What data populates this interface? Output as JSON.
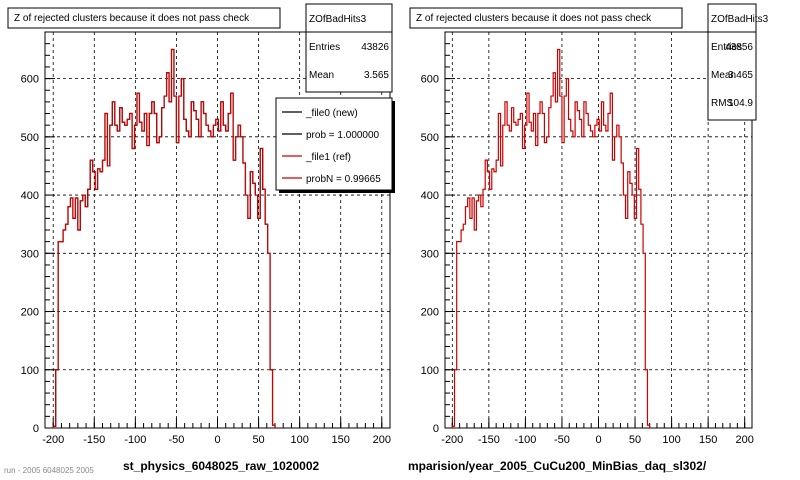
{
  "chart_data": [
    {
      "type": "histogram",
      "title": "Z of rejected clusters  because it does not pass check",
      "xlabel": "st_physics_6048025_raw_1020002",
      "xlim": [
        -210,
        210
      ],
      "ylim": [
        0,
        680
      ],
      "xticks": [
        -200,
        -150,
        -100,
        -50,
        0,
        50,
        100,
        150,
        200
      ],
      "yticks": [
        0,
        100,
        200,
        300,
        400,
        500,
        600
      ],
      "grid": true,
      "stats": {
        "name": "ZOfBadHits3",
        "rows": [
          {
            "label": "Entries",
            "value": "43826"
          },
          {
            "label": "Mean",
            "value": "3.565"
          }
        ]
      },
      "legend": {
        "placement": "top-right",
        "entries": [
          {
            "label": "_file0 (new)",
            "color": "#000000"
          },
          {
            "label": "prob = 1.000000",
            "color": "#000000"
          },
          {
            "label": "_file1 (ref)",
            "color": "#cc0000"
          },
          {
            "label": "probN = 0.99665",
            "color": "#cc0000"
          }
        ]
      },
      "series": [
        {
          "name": "_file1 (ref)",
          "color": "#cc0000",
          "bin_start": -200,
          "bin_width": 3,
          "values": [
            3,
            100,
            320,
            320,
            340,
            350,
            380,
            395,
            360,
            395,
            340,
            390,
            400,
            380,
            410,
            460,
            440,
            410,
            445,
            440,
            460,
            540,
            450,
            520,
            560,
            520,
            510,
            550,
            525,
            520,
            530,
            540,
            480,
            520,
            575,
            525,
            510,
            540,
            485,
            540,
            560,
            540,
            490,
            500,
            550,
            570,
            610,
            560,
            650,
            570,
            490,
            570,
            600,
            530,
            510,
            500,
            560,
            545,
            530,
            500,
            560,
            540,
            520,
            510,
            500,
            520,
            530,
            510,
            560,
            520,
            510,
            540,
            575,
            460,
            500,
            520,
            500,
            455,
            400,
            360,
            440,
            420,
            400,
            360,
            480,
            410,
            350,
            300,
            100,
            5
          ]
        },
        {
          "name": "_file0 (new)",
          "color": "#000000",
          "bin_start": -200,
          "bin_width": 3,
          "values": [
            3,
            100,
            320,
            320,
            340,
            350,
            380,
            395,
            360,
            395,
            340,
            390,
            400,
            380,
            410,
            460,
            440,
            410,
            445,
            440,
            460,
            540,
            450,
            520,
            560,
            520,
            510,
            550,
            525,
            520,
            530,
            540,
            480,
            520,
            575,
            525,
            510,
            540,
            485,
            540,
            560,
            540,
            490,
            500,
            550,
            570,
            610,
            560,
            650,
            570,
            490,
            570,
            600,
            530,
            510,
            500,
            560,
            545,
            530,
            500,
            560,
            540,
            520,
            510,
            500,
            520,
            530,
            510,
            560,
            520,
            510,
            540,
            575,
            460,
            500,
            520,
            500,
            455,
            400,
            360,
            440,
            420,
            400,
            360,
            480,
            410,
            350,
            300,
            100,
            5
          ]
        }
      ]
    },
    {
      "type": "histogram",
      "title": "Z of rejected clusters  because it does not pass check",
      "xlabel": "mparision/year_2005_CuCu200_MinBias_daq_sl302/",
      "xlim": [
        -210,
        210
      ],
      "ylim": [
        0,
        680
      ],
      "xticks": [
        -200,
        -150,
        -100,
        -50,
        0,
        50,
        100,
        150,
        200
      ],
      "yticks": [
        0,
        100,
        200,
        300,
        400,
        500,
        600
      ],
      "grid": true,
      "stats": {
        "name": "ZOfBadHits3",
        "rows": [
          {
            "label": "Entries",
            "value": "43856"
          },
          {
            "label": "Mean",
            "value": "3.465"
          },
          {
            "label": "RMS",
            "value": "104.9"
          }
        ]
      },
      "series": [
        {
          "name": "",
          "color": "#cc0000",
          "bin_start": -200,
          "bin_width": 3,
          "values": [
            3,
            100,
            320,
            320,
            340,
            350,
            380,
            395,
            360,
            395,
            340,
            390,
            400,
            380,
            410,
            460,
            440,
            410,
            445,
            440,
            460,
            540,
            450,
            520,
            560,
            520,
            510,
            550,
            525,
            520,
            530,
            540,
            480,
            520,
            575,
            525,
            510,
            540,
            485,
            540,
            560,
            540,
            490,
            500,
            550,
            570,
            610,
            560,
            650,
            570,
            490,
            570,
            600,
            530,
            510,
            500,
            560,
            545,
            530,
            500,
            560,
            540,
            520,
            510,
            500,
            520,
            530,
            510,
            560,
            520,
            510,
            540,
            575,
            460,
            500,
            520,
            500,
            455,
            400,
            360,
            440,
            420,
            400,
            360,
            480,
            410,
            350,
            300,
            100,
            5
          ]
        }
      ]
    }
  ],
  "footer": {
    "left_text": "run - 2005 6048025 2005"
  }
}
